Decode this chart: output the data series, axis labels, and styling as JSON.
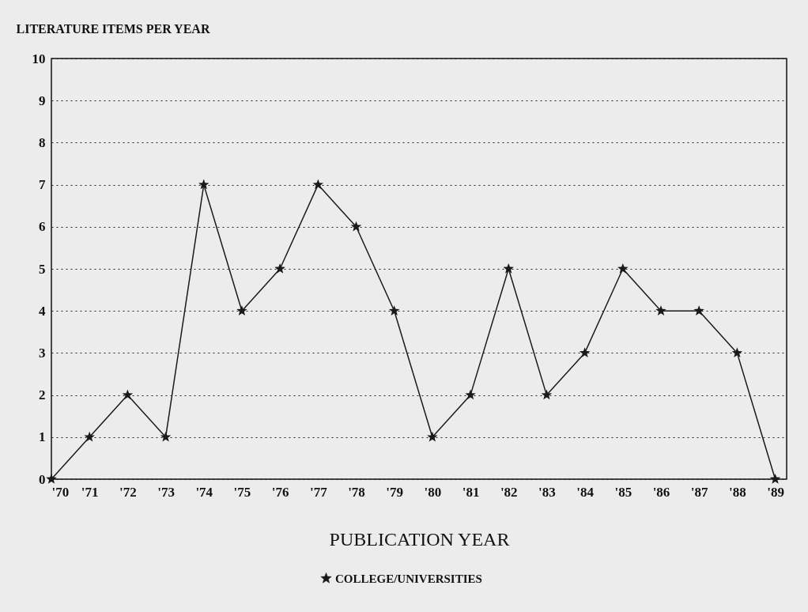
{
  "chart_data": {
    "type": "line",
    "ylabel": "LITERATURE ITEMS PER YEAR",
    "xlabel": "PUBLICATION YEAR",
    "categories": [
      "'70",
      "'71",
      "'72",
      "'73",
      "'74",
      "'75",
      "'76",
      "'77",
      "'78",
      "'79",
      "'80",
      "'81",
      "'82",
      "'83",
      "'84",
      "'85",
      "'86",
      "'87",
      "'88",
      "'89"
    ],
    "series": [
      {
        "name": "COLLEGE/UNIVERSITIES",
        "color": "#1a1a1a",
        "values": [
          0,
          1,
          2,
          1,
          7,
          4,
          5,
          7,
          6,
          4,
          1,
          2,
          5,
          2,
          3,
          5,
          4,
          4,
          3,
          0
        ]
      }
    ],
    "ylim": [
      0,
      10
    ],
    "yticks": [
      0,
      1,
      2,
      3,
      4,
      5,
      6,
      7,
      8,
      9,
      10
    ],
    "grid": "y",
    "legend": "bottom",
    "marker": "star",
    "line_style": "solid"
  }
}
